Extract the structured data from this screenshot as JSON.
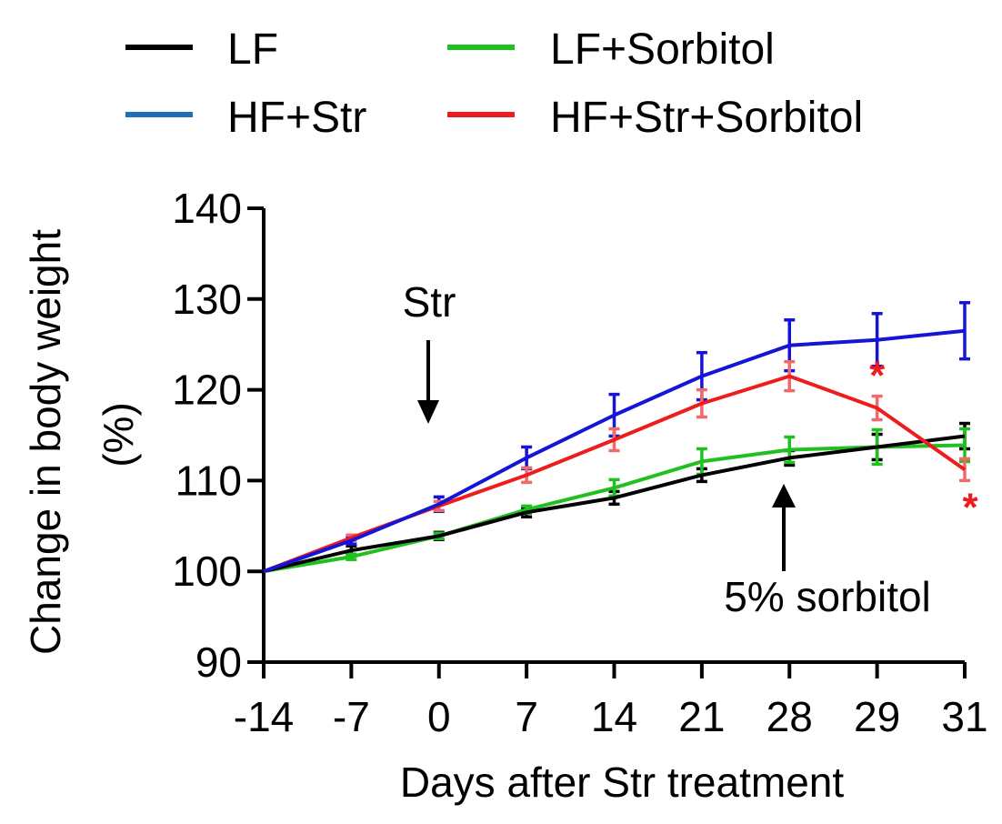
{
  "chart_data": {
    "type": "line",
    "title": "",
    "xlabel": "Days after Str treatment",
    "ylabel_line1": "Change in body weight",
    "ylabel_line2": "(%)",
    "categories": [
      "-14",
      "-7",
      "0",
      "7",
      "14",
      "21",
      "28",
      "29",
      "31"
    ],
    "ylim": [
      90,
      140
    ],
    "yticks": [
      90,
      100,
      110,
      120,
      130,
      140
    ],
    "legend_placement": "top",
    "series": [
      {
        "name": "LF",
        "color": "#000000",
        "legend_color": "#000000",
        "values": [
          100,
          102.3,
          103.9,
          106.5,
          108.1,
          110.6,
          112.5,
          113.7,
          114.9
        ],
        "errors": [
          0,
          0.5,
          0.4,
          0.5,
          0.7,
          0.7,
          0.8,
          1.4,
          1.4
        ]
      },
      {
        "name": "HF+Str",
        "color": "#1515d6",
        "legend_color": "#1f6fb8",
        "values": [
          100,
          103.4,
          107.4,
          112.5,
          117.2,
          121.5,
          124.9,
          125.5,
          126.5
        ],
        "errors": [
          0,
          0.4,
          0.8,
          1.2,
          2.3,
          2.6,
          2.8,
          2.9,
          3.1
        ]
      },
      {
        "name": "LF+Sorbitol",
        "color": "#20c020",
        "legend_color": "#20c020",
        "values": [
          100,
          101.6,
          103.9,
          106.8,
          109.2,
          112.1,
          113.4,
          113.7,
          113.9
        ],
        "errors": [
          0,
          0.3,
          0.3,
          0.4,
          0.9,
          1.4,
          1.4,
          1.9,
          1.8
        ]
      },
      {
        "name": "HF+Str+Sorbitol",
        "color": "#ee1c1c",
        "legend_color": "#ee1c1c",
        "error_color": "#f06a6a",
        "values": [
          100,
          103.7,
          107.2,
          110.6,
          114.5,
          118.5,
          121.5,
          118.0,
          111.2
        ],
        "errors": [
          0,
          0.3,
          0.5,
          0.8,
          1.2,
          1.5,
          1.6,
          1.3,
          1.2
        ]
      }
    ],
    "annotations": [
      {
        "text": "Str",
        "at": "0",
        "direction": "down"
      },
      {
        "text": "5% sorbitol",
        "at": "28",
        "direction": "up"
      }
    ],
    "significance": [
      {
        "mark": "*",
        "at": "29",
        "series": "HF+Str+Sorbitol",
        "position": "above"
      },
      {
        "mark": "*",
        "at": "31",
        "series": "HF+Str+Sorbitol",
        "position": "below"
      }
    ]
  }
}
